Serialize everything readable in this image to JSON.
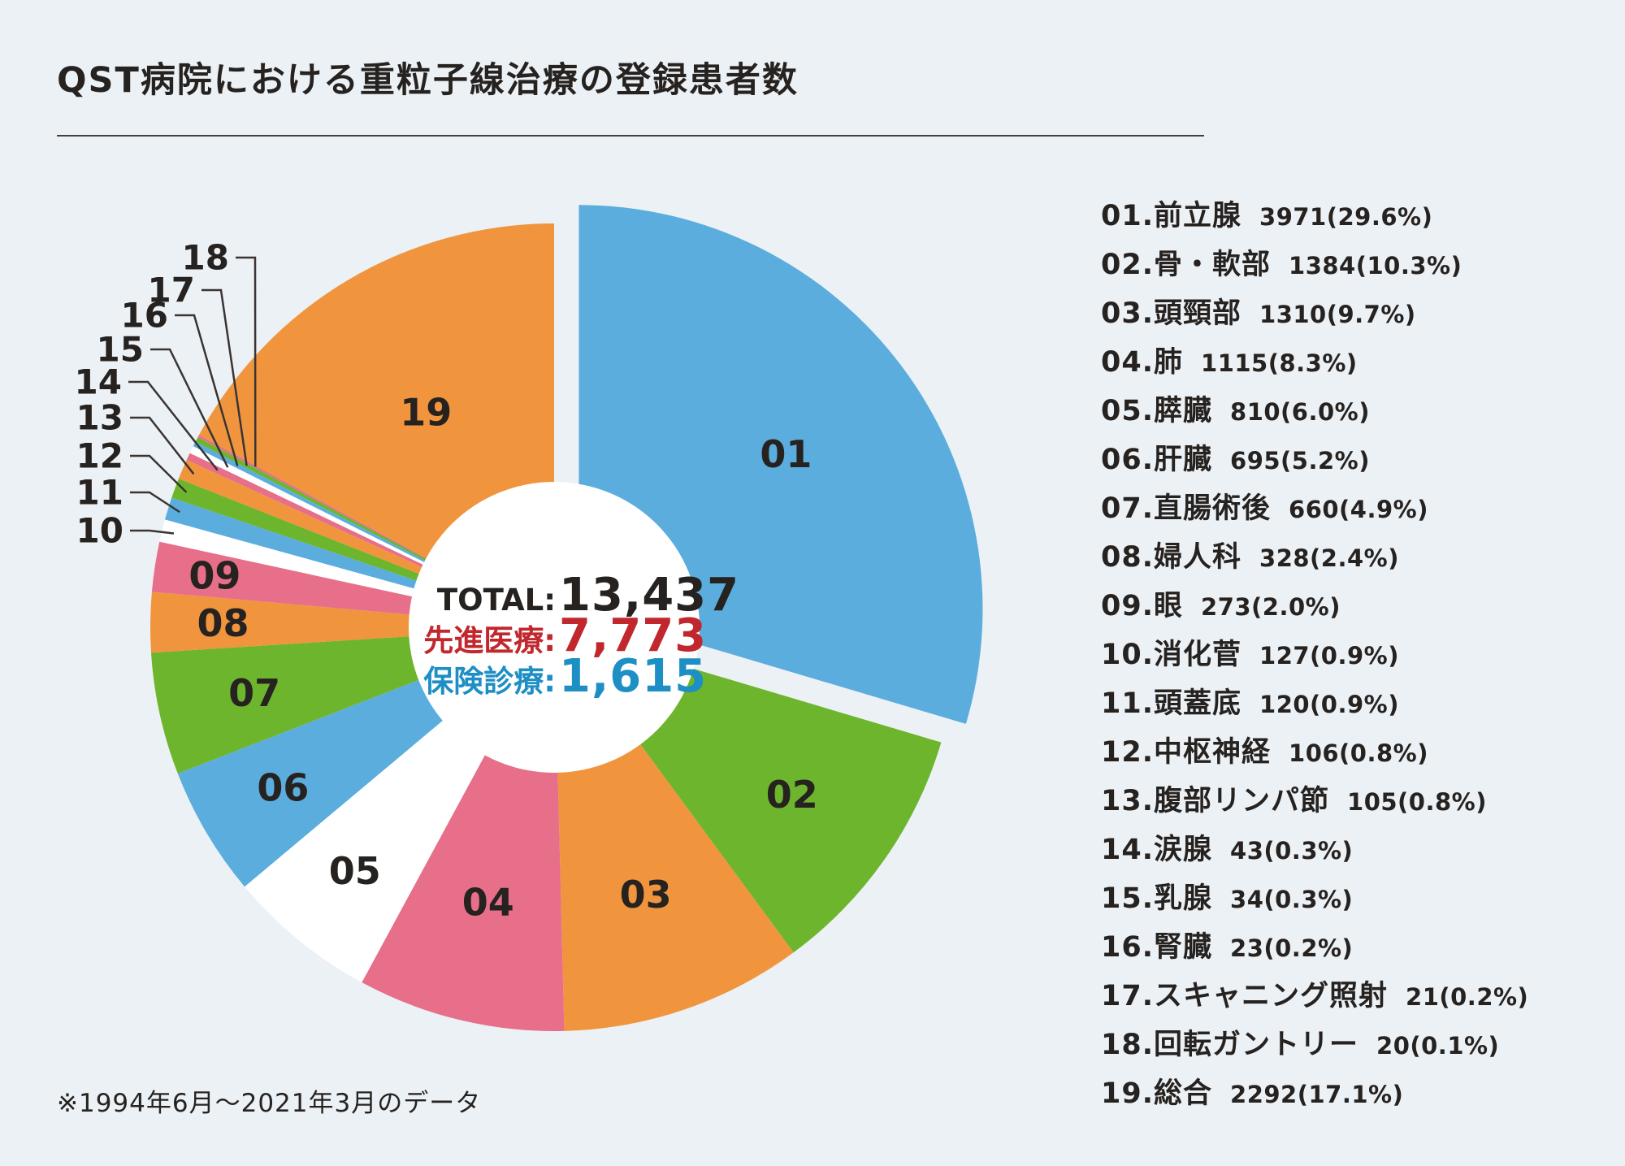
{
  "title": "QST病院における重粒子線治療の登録患者数",
  "footnote": "※1994年6月～2021年3月のデータ",
  "center": {
    "total_label": "TOTAL:",
    "total_value": "13,437",
    "advanced_label": "先進医療:",
    "advanced_value": "7,773",
    "insurance_label": "保険診療:",
    "insurance_value": "1,615"
  },
  "colors": {
    "background": "#ecf1f5",
    "text_dark": "#262220",
    "accent_red": "#c0282e",
    "accent_blue": "#1e8fc4",
    "slice_blue": "#5badde",
    "slice_green": "#6eb52e",
    "slice_orange": "#f0953e",
    "slice_pink": "#e76f8a",
    "slice_white": "#ffffff",
    "leader_line": "#3a3432"
  },
  "chart_data": {
    "type": "pie",
    "title": "QST病院における重粒子線治療の登録患者数",
    "total": 13437,
    "advanced_medical_care": 7773,
    "insured_care": 1615,
    "start_angle_deg": 0,
    "direction": "clockwise",
    "exploded_slice": "01",
    "legend_position": "right",
    "note": "※1994年6月～2021年3月のデータ",
    "items": [
      {
        "num": "01",
        "name": "前立腺",
        "value": 3971,
        "pct": 29.6,
        "color": "#5badde"
      },
      {
        "num": "02",
        "name": "骨・軟部",
        "value": 1384,
        "pct": 10.3,
        "color": "#6eb52e"
      },
      {
        "num": "03",
        "name": "頭頸部",
        "value": 1310,
        "pct": 9.7,
        "color": "#f0953e"
      },
      {
        "num": "04",
        "name": "肺",
        "value": 1115,
        "pct": 8.3,
        "color": "#e76f8a"
      },
      {
        "num": "05",
        "name": "膵臓",
        "value": 810,
        "pct": 6.0,
        "color": "#ffffff"
      },
      {
        "num": "06",
        "name": "肝臓",
        "value": 695,
        "pct": 5.2,
        "color": "#5badde"
      },
      {
        "num": "07",
        "name": "直腸術後",
        "value": 660,
        "pct": 4.9,
        "color": "#6eb52e"
      },
      {
        "num": "08",
        "name": "婦人科",
        "value": 328,
        "pct": 2.4,
        "color": "#f0953e"
      },
      {
        "num": "09",
        "name": "眼",
        "value": 273,
        "pct": 2.0,
        "color": "#e76f8a"
      },
      {
        "num": "10",
        "name": "消化菅",
        "value": 127,
        "pct": 0.9,
        "color": "#ffffff"
      },
      {
        "num": "11",
        "name": "頭蓋底",
        "value": 120,
        "pct": 0.9,
        "color": "#5badde"
      },
      {
        "num": "12",
        "name": "中枢神経",
        "value": 106,
        "pct": 0.8,
        "color": "#6eb52e"
      },
      {
        "num": "13",
        "name": "腹部リンパ節",
        "value": 105,
        "pct": 0.8,
        "color": "#f0953e"
      },
      {
        "num": "14",
        "name": "涙腺",
        "value": 43,
        "pct": 0.3,
        "color": "#e76f8a"
      },
      {
        "num": "15",
        "name": "乳腺",
        "value": 34,
        "pct": 0.3,
        "color": "#ffffff"
      },
      {
        "num": "16",
        "name": "腎臓",
        "value": 23,
        "pct": 0.2,
        "color": "#5badde"
      },
      {
        "num": "17",
        "name": "スキャニング照射",
        "value": 21,
        "pct": 0.2,
        "color": "#6eb52e"
      },
      {
        "num": "18",
        "name": "回転ガントリー",
        "value": 20,
        "pct": 0.1,
        "color": "#e76f8a"
      },
      {
        "num": "19",
        "name": "総合",
        "value": 2292,
        "pct": 17.1,
        "color": "#f0953e"
      }
    ]
  }
}
